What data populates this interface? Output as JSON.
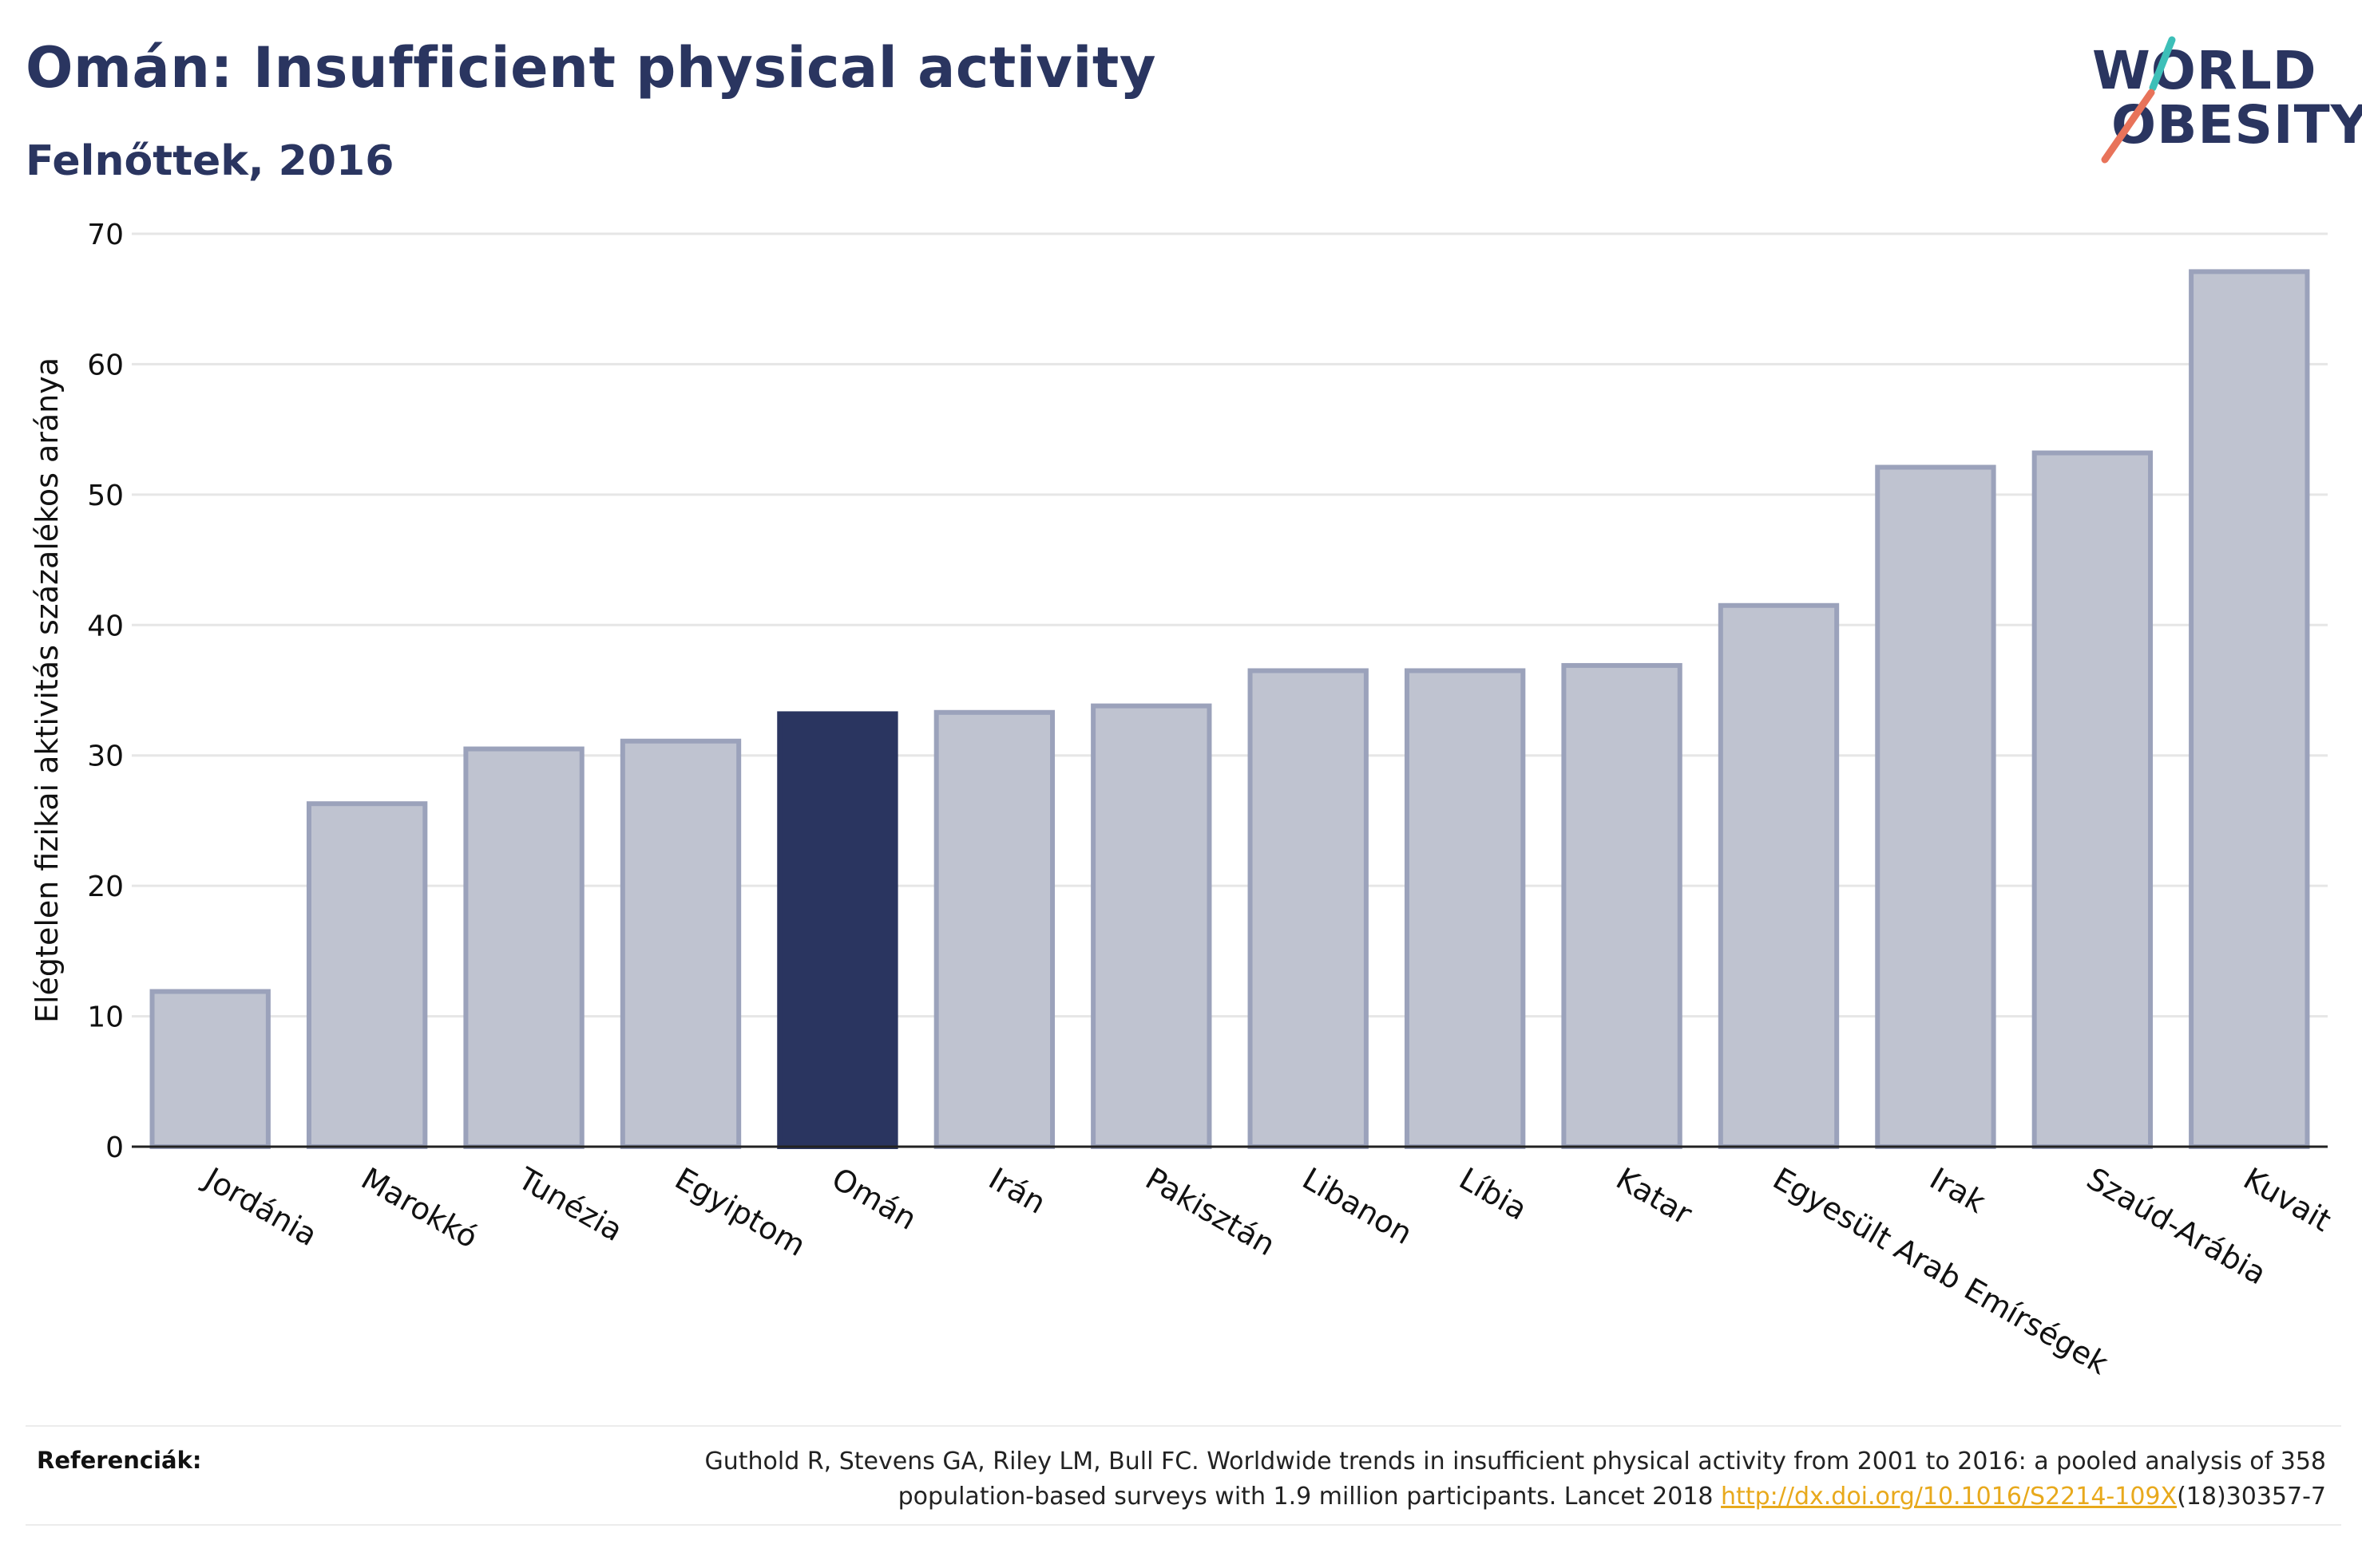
{
  "header": {
    "title": "Omán: Insufficient physical activity",
    "subtitle": "Felnőttek, 2016"
  },
  "logo": {
    "line1": "WORLD",
    "line2": "OBESITY",
    "colors": {
      "text": "#2a3560",
      "slash_top": "#3dbfb8",
      "slash_bottom": "#e8735a"
    }
  },
  "chart_data": {
    "type": "bar",
    "categories": [
      "Jordánia",
      "Marokkó",
      "Tunézia",
      "Egyiptom",
      "Omán",
      "Irán",
      "Pakisztán",
      "Libanon",
      "Líbia",
      "Katar",
      "Egyesült Arab Emírségek",
      "Irak",
      "Szaúd-Arábia",
      "Kuvait"
    ],
    "values": [
      11.9,
      26.3,
      30.5,
      31.1,
      33.2,
      33.3,
      33.8,
      36.5,
      36.5,
      36.9,
      41.5,
      52.1,
      53.2,
      67.1
    ],
    "highlight": "Omán",
    "ylabel": "Elégtelen fizikai aktivitás százalékos aránya",
    "xlabel": "",
    "ylim": [
      0,
      70
    ],
    "yticks": [
      0,
      10,
      20,
      30,
      40,
      50,
      60,
      70
    ],
    "grid": true,
    "colors": {
      "bar": "#bfc3d0",
      "bar_edge": "#9ba2bb",
      "highlight": "#2a3560",
      "grid": "#e6e6e6",
      "axis": "#222222"
    }
  },
  "footer": {
    "label": "Referenciák:",
    "text_before": "Guthold R, Stevens GA, Riley LM, Bull FC. Worldwide trends in insufficient physical activity from 2001 to 2016: a pooled analysis of 358 population-based surveys with 1.9 million participants. Lancet 2018 ",
    "link_text": "http://dx.doi.org/10.1016/S2214-109X",
    "text_after": "(18)30357-7"
  }
}
